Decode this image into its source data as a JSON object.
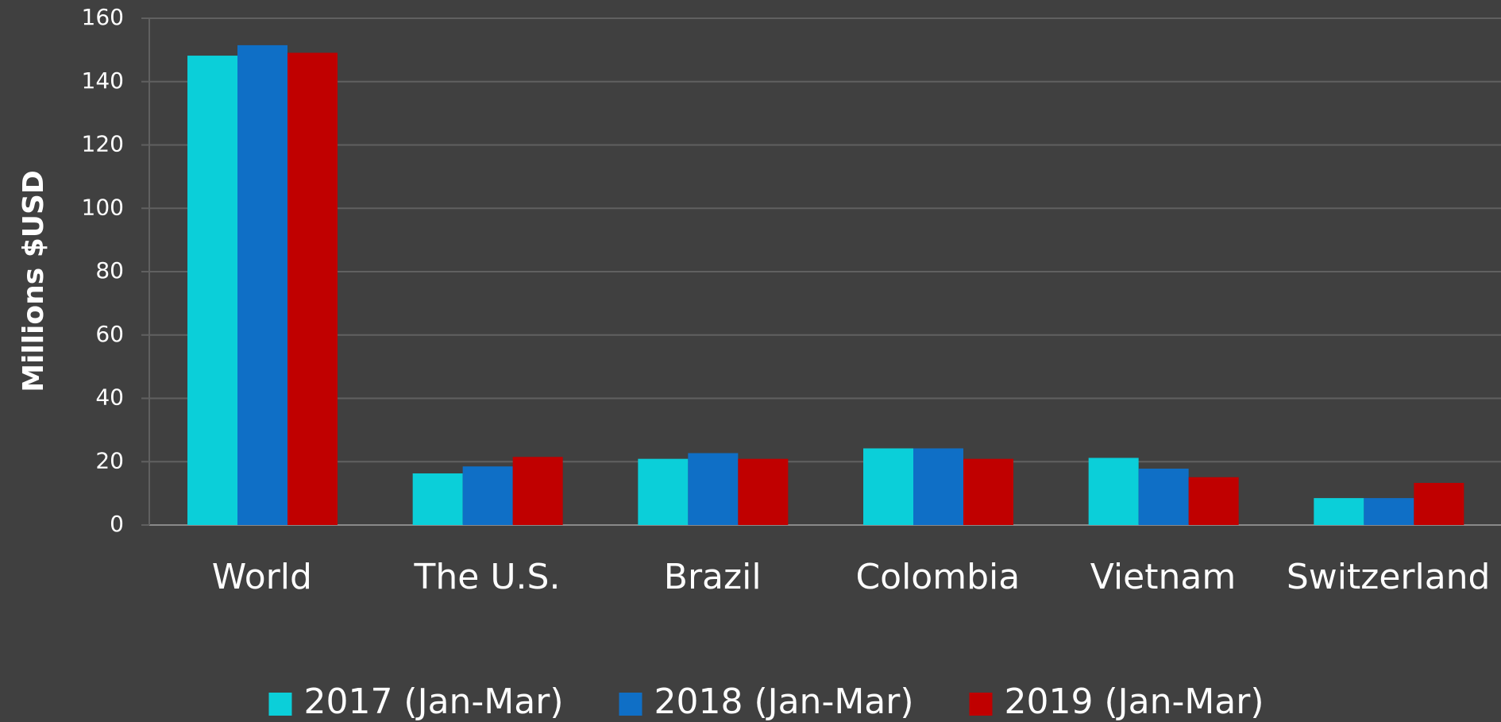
{
  "chart_data": {
    "type": "bar",
    "y_label": "Millions $USD",
    "categories": [
      "World",
      "The U.S.",
      "Brazil",
      "Colombia",
      "Vietnam",
      "Switzerland"
    ],
    "series": [
      {
        "name": "2017 (Jan-Mar)",
        "color": "#0bcfd9",
        "values": [
          148.2,
          16.3,
          20.9,
          24.2,
          21.2,
          8.5
        ]
      },
      {
        "name": "2018 (Jan-Mar)",
        "color": "#0f6fc6",
        "values": [
          151.5,
          18.5,
          22.7,
          24.2,
          17.8,
          8.5
        ]
      },
      {
        "name": "2019 (Jan-Mar)",
        "color": "#c00000",
        "values": [
          149.1,
          21.5,
          20.9,
          20.9,
          15.1,
          13.3
        ]
      }
    ],
    "ylim": [
      0,
      160
    ],
    "yticks": [
      0,
      20,
      40,
      60,
      80,
      100,
      120,
      140,
      160
    ],
    "grid": true,
    "legend": "bottom"
  }
}
